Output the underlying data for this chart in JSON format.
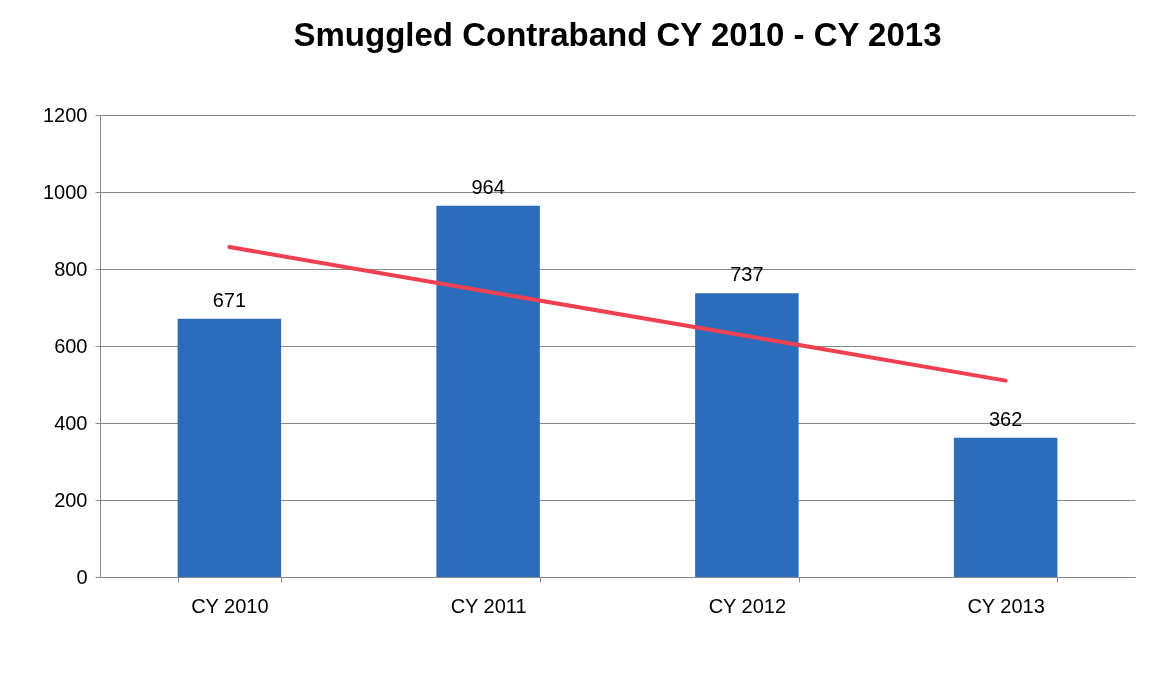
{
  "chart_data": {
    "type": "bar",
    "title": "Smuggled Contraband CY 2010 - CY 2013",
    "categories": [
      "CY 2010",
      "CY 2011",
      "CY 2012",
      "CY 2013"
    ],
    "series": [
      {
        "color": "#2a6ebb",
        "values": [
          671,
          964,
          737,
          362
        ],
        "value_labels": [
          "671",
          "964",
          "737",
          "362"
        ]
      },
      {
        "type": "line",
        "color": "#ee4050",
        "x": [
          "CY 2010",
          "CY 2011",
          "CY 2012",
          "CY 2013"
        ],
        "values": [
          857,
          741,
          626,
          510
        ]
      }
    ],
    "ylim": [
      0,
      1200
    ],
    "yticks": [
      0,
      200,
      400,
      600,
      800,
      1000,
      1200
    ],
    "grid": "y"
  }
}
